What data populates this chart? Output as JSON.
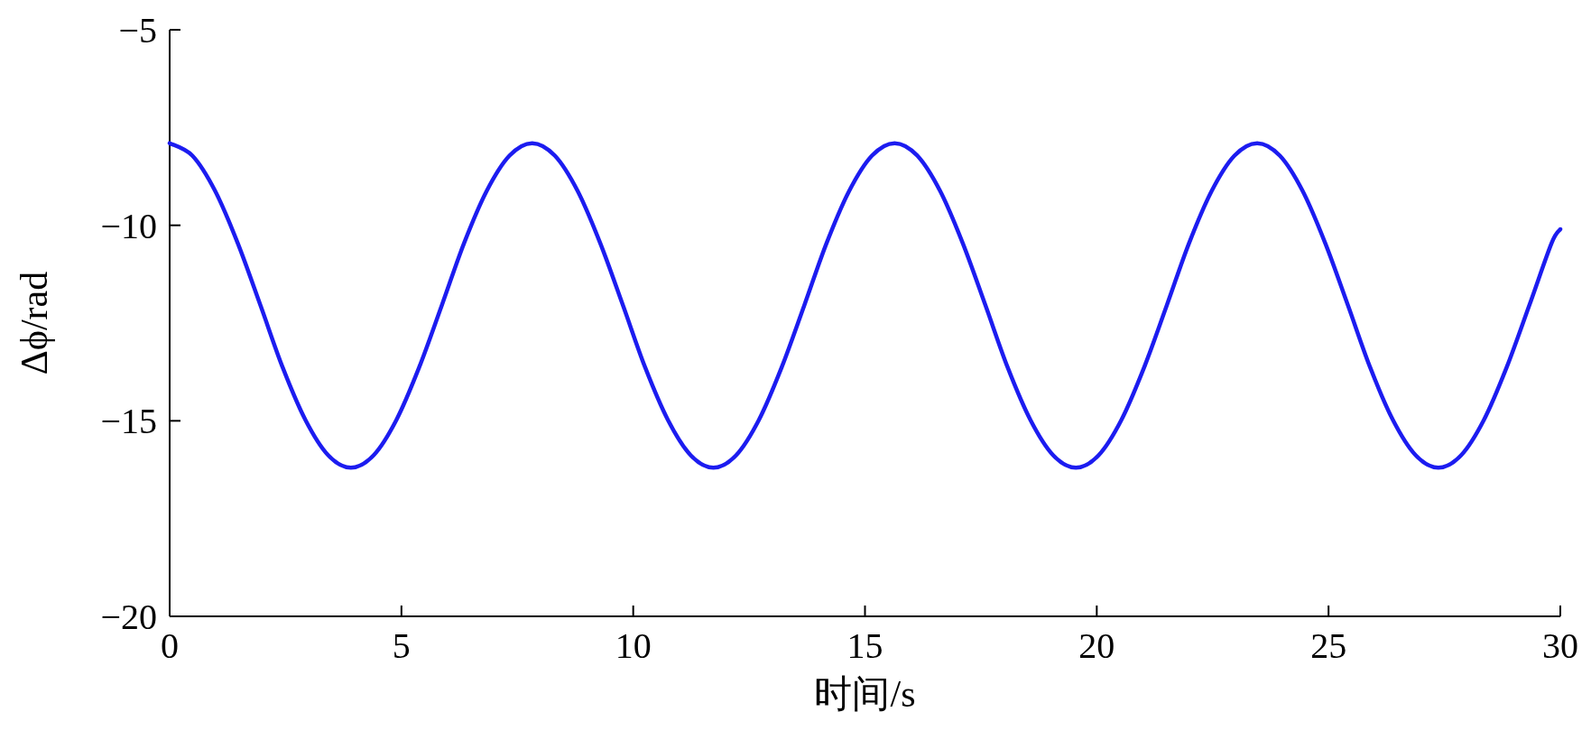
{
  "chart_data": {
    "type": "line",
    "xlabel": "时间/s",
    "ylabel": "Δϕ/rad",
    "xlim": [
      0,
      30
    ],
    "ylim": [
      -20,
      -5
    ],
    "xticks": [
      0,
      5,
      10,
      15,
      20,
      25,
      30
    ],
    "yticks": [
      -20,
      -15,
      -10,
      -5
    ],
    "grid": false,
    "marker": "none",
    "line_style": "solid",
    "x": [
      0,
      0.49,
      0.98,
      1.47,
      1.96,
      2.44,
      2.93,
      3.42,
      3.91,
      4.4,
      4.89,
      5.38,
      5.87,
      6.35,
      6.84,
      7.33,
      7.82,
      8.31,
      8.8,
      9.29,
      9.78,
      10.26,
      10.75,
      11.24,
      11.73,
      12.22,
      12.71,
      13.2,
      13.69,
      14.17,
      14.66,
      15.15,
      15.64,
      16.13,
      16.62,
      17.11,
      17.6,
      18.08,
      18.57,
      19.06,
      19.55,
      20.04,
      20.53,
      21.02,
      21.51,
      21.99,
      22.48,
      22.97,
      23.46,
      23.95,
      24.44,
      24.93,
      25.42,
      25.9,
      26.39,
      26.88,
      27.37,
      27.86,
      28.35,
      28.84,
      29.33,
      29.81,
      30
    ],
    "series": [
      {
        "color": "#1c1cf0",
        "values": [
          -7.9,
          -8.22,
          -9.12,
          -10.46,
          -12.05,
          -13.64,
          -14.98,
          -15.88,
          -16.2,
          -15.88,
          -14.98,
          -13.64,
          -12.05,
          -10.46,
          -9.12,
          -8.22,
          -7.9,
          -8.22,
          -9.12,
          -10.46,
          -12.05,
          -13.64,
          -14.98,
          -15.88,
          -16.2,
          -15.88,
          -14.98,
          -13.64,
          -12.05,
          -10.46,
          -9.12,
          -8.22,
          -7.9,
          -8.22,
          -9.12,
          -10.46,
          -12.05,
          -13.64,
          -14.98,
          -15.88,
          -16.2,
          -15.88,
          -14.98,
          -13.64,
          -12.05,
          -10.46,
          -9.12,
          -8.22,
          -7.9,
          -8.22,
          -9.12,
          -10.46,
          -12.05,
          -13.64,
          -14.98,
          -15.88,
          -16.2,
          -15.88,
          -14.98,
          -13.64,
          -12.05,
          -10.46,
          -10.1
        ]
      }
    ]
  }
}
